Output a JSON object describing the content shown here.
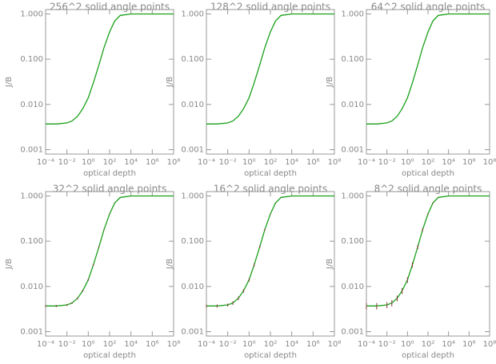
{
  "chart_data": [
    {
      "type": "line",
      "title": "256^2 solid angle points",
      "xlabel": "optical depth",
      "ylabel": "J/B",
      "color": "#1aa01a",
      "log_x": true,
      "log_y": true,
      "x": [
        0.0001,
        0.001,
        0.01,
        0.03,
        0.1,
        0.3,
        1,
        3,
        10,
        30,
        100,
        300,
        1000,
        10000,
        100000,
        1000000,
        10000000,
        100000000
      ],
      "values": [
        0.0037,
        0.0037,
        0.0039,
        0.0043,
        0.0055,
        0.008,
        0.014,
        0.03,
        0.075,
        0.18,
        0.4,
        0.7,
        0.93,
        1,
        1,
        1,
        1,
        1
      ],
      "xlim": [
        0.0001,
        100000000
      ],
      "ylim": [
        0.0008,
        1.25
      ],
      "xticks": [
        {
          "value": 0.0001,
          "label": "10⁻⁴"
        },
        {
          "value": 0.01,
          "label": "10⁻²"
        },
        {
          "value": 1,
          "label": "10⁰"
        },
        {
          "value": 100,
          "label": "10²"
        },
        {
          "value": 10000,
          "label": "10⁴"
        },
        {
          "value": 1000000,
          "label": "10⁶"
        },
        {
          "value": 100000000,
          "label": "10⁸"
        }
      ],
      "yticks": [
        {
          "value": 0.001,
          "label": "0.001"
        },
        {
          "value": 0.01,
          "label": "0.010"
        },
        {
          "value": 0.1,
          "label": "0.100"
        },
        {
          "value": 1,
          "label": "1.000"
        }
      ]
    },
    {
      "type": "line",
      "title": "128^2 solid angle points",
      "xlabel": "optical depth",
      "ylabel": "J/B",
      "color": "#1aa01a",
      "log_x": true,
      "log_y": true,
      "x": [
        0.0001,
        0.001,
        0.01,
        0.03,
        0.1,
        0.3,
        1,
        3,
        10,
        30,
        100,
        300,
        1000,
        10000,
        100000,
        1000000,
        10000000,
        100000000
      ],
      "values": [
        0.0037,
        0.0037,
        0.0039,
        0.0043,
        0.0055,
        0.008,
        0.014,
        0.03,
        0.075,
        0.18,
        0.4,
        0.7,
        0.93,
        1,
        1,
        1,
        1,
        1
      ],
      "xlim": [
        0.0001,
        100000000
      ],
      "ylim": [
        0.0008,
        1.25
      ],
      "xticks": [
        {
          "value": 0.0001,
          "label": "10⁻⁴"
        },
        {
          "value": 0.01,
          "label": "10⁻²"
        },
        {
          "value": 1,
          "label": "10⁰"
        },
        {
          "value": 100,
          "label": "10²"
        },
        {
          "value": 10000,
          "label": "10⁴"
        },
        {
          "value": 1000000,
          "label": "10⁶"
        },
        {
          "value": 100000000,
          "label": "10⁸"
        }
      ],
      "yticks": [
        {
          "value": 0.001,
          "label": "0.001"
        },
        {
          "value": 0.01,
          "label": "0.010"
        },
        {
          "value": 0.1,
          "label": "0.100"
        },
        {
          "value": 1,
          "label": "1.000"
        }
      ]
    },
    {
      "type": "line",
      "title": "64^2 solid angle points",
      "xlabel": "optical depth",
      "ylabel": "J/B",
      "color": "#1aa01a",
      "log_x": true,
      "log_y": true,
      "x": [
        0.0001,
        0.001,
        0.01,
        0.03,
        0.1,
        0.3,
        1,
        3,
        10,
        30,
        100,
        300,
        1000,
        10000,
        100000,
        1000000,
        10000000,
        100000000
      ],
      "values": [
        0.0037,
        0.0037,
        0.0039,
        0.0043,
        0.0055,
        0.008,
        0.014,
        0.03,
        0.075,
        0.18,
        0.4,
        0.7,
        0.93,
        1,
        1,
        1,
        1,
        1
      ],
      "xlim": [
        0.0001,
        100000000
      ],
      "ylim": [
        0.0008,
        1.25
      ],
      "xticks": [
        {
          "value": 0.0001,
          "label": "10⁻⁴"
        },
        {
          "value": 0.01,
          "label": "10⁻²"
        },
        {
          "value": 1,
          "label": "10⁰"
        },
        {
          "value": 100,
          "label": "10²"
        },
        {
          "value": 10000,
          "label": "10⁴"
        },
        {
          "value": 1000000,
          "label": "10⁶"
        },
        {
          "value": 100000000,
          "label": "10⁸"
        }
      ],
      "yticks": [
        {
          "value": 0.001,
          "label": "0.001"
        },
        {
          "value": 0.01,
          "label": "0.010"
        },
        {
          "value": 0.1,
          "label": "0.100"
        },
        {
          "value": 1,
          "label": "1.000"
        }
      ]
    },
    {
      "type": "line",
      "title": "32^2 solid angle points",
      "xlabel": "optical depth",
      "ylabel": "J/B",
      "color": "#1aa01a",
      "log_x": true,
      "log_y": true,
      "x": [
        0.0001,
        0.001,
        0.01,
        0.03,
        0.1,
        0.3,
        1,
        3,
        10,
        30,
        100,
        300,
        1000,
        10000,
        100000,
        1000000,
        10000000,
        100000000
      ],
      "values": [
        0.0037,
        0.0037,
        0.0039,
        0.0043,
        0.0055,
        0.008,
        0.014,
        0.03,
        0.075,
        0.18,
        0.4,
        0.7,
        0.93,
        1,
        1,
        1,
        1,
        1
      ],
      "errors": [
        0.0002,
        0.0002,
        0.0002,
        0.0002,
        0.0003,
        0.0004,
        0.0007,
        0.0013,
        0.003,
        0.005,
        0.006,
        0.006,
        0.003,
        0,
        0,
        0,
        0,
        0
      ],
      "xlim": [
        0.0001,
        100000000
      ],
      "ylim": [
        0.0008,
        1.25
      ],
      "xticks": [
        {
          "value": 0.0001,
          "label": "10⁻⁴"
        },
        {
          "value": 0.01,
          "label": "10⁻²"
        },
        {
          "value": 1,
          "label": "10⁰"
        },
        {
          "value": 100,
          "label": "10²"
        },
        {
          "value": 10000,
          "label": "10⁴"
        },
        {
          "value": 1000000,
          "label": "10⁶"
        },
        {
          "value": 100000000,
          "label": "10⁸"
        }
      ],
      "yticks": [
        {
          "value": 0.001,
          "label": "0.001"
        },
        {
          "value": 0.01,
          "label": "0.010"
        },
        {
          "value": 0.1,
          "label": "0.100"
        },
        {
          "value": 1,
          "label": "1.000"
        }
      ]
    },
    {
      "type": "line",
      "title": "16^2 solid angle points",
      "xlabel": "optical depth",
      "ylabel": "J/B",
      "color": "#1aa01a",
      "log_x": true,
      "log_y": true,
      "x": [
        0.0001,
        0.001,
        0.01,
        0.03,
        0.1,
        0.3,
        1,
        3,
        10,
        30,
        100,
        300,
        1000,
        10000,
        100000,
        1000000,
        10000000,
        100000000
      ],
      "values": [
        0.0037,
        0.0037,
        0.0039,
        0.0043,
        0.0055,
        0.008,
        0.014,
        0.03,
        0.075,
        0.18,
        0.4,
        0.7,
        0.93,
        1,
        1,
        1,
        1,
        1
      ],
      "errors": [
        0.0003,
        0.0003,
        0.0003,
        0.0004,
        0.0005,
        0.0007,
        0.0012,
        0.0025,
        0.005,
        0.01,
        0.012,
        0.012,
        0.006,
        0,
        0,
        0,
        0,
        0
      ],
      "xlim": [
        0.0001,
        100000000
      ],
      "ylim": [
        0.0008,
        1.25
      ],
      "xticks": [
        {
          "value": 0.0001,
          "label": "10⁻⁴"
        },
        {
          "value": 0.01,
          "label": "10⁻²"
        },
        {
          "value": 1,
          "label": "10⁰"
        },
        {
          "value": 100,
          "label": "10²"
        },
        {
          "value": 10000,
          "label": "10⁴"
        },
        {
          "value": 1000000,
          "label": "10⁶"
        },
        {
          "value": 100000000,
          "label": "10⁸"
        }
      ],
      "yticks": [
        {
          "value": 0.001,
          "label": "0.001"
        },
        {
          "value": 0.01,
          "label": "0.010"
        },
        {
          "value": 0.1,
          "label": "0.100"
        },
        {
          "value": 1,
          "label": "1.000"
        }
      ]
    },
    {
      "type": "line",
      "title": "8^2 solid angle points",
      "xlabel": "optical depth",
      "ylabel": "J/B",
      "color": "#1aa01a",
      "log_x": true,
      "log_y": true,
      "x": [
        0.0001,
        0.001,
        0.01,
        0.03,
        0.1,
        0.3,
        1,
        3,
        10,
        30,
        100,
        300,
        1000,
        10000,
        100000,
        1000000,
        10000000,
        100000000
      ],
      "values": [
        0.0037,
        0.0037,
        0.0039,
        0.0043,
        0.0055,
        0.008,
        0.014,
        0.03,
        0.075,
        0.18,
        0.4,
        0.7,
        0.93,
        1,
        1,
        1,
        1,
        1
      ],
      "errors": [
        0.0006,
        0.0006,
        0.0006,
        0.0007,
        0.0008,
        0.0012,
        0.002,
        0.004,
        0.008,
        0.015,
        0.02,
        0.02,
        0.01,
        0,
        0,
        0,
        0,
        0
      ],
      "xlim": [
        0.0001,
        100000000
      ],
      "ylim": [
        0.0008,
        1.25
      ],
      "xticks": [
        {
          "value": 0.0001,
          "label": "10⁻⁴"
        },
        {
          "value": 0.01,
          "label": "10⁻²"
        },
        {
          "value": 1,
          "label": "10⁰"
        },
        {
          "value": 100,
          "label": "10²"
        },
        {
          "value": 10000,
          "label": "10⁴"
        },
        {
          "value": 1000000,
          "label": "10⁶"
        },
        {
          "value": 100000000,
          "label": "10⁸"
        }
      ],
      "yticks": [
        {
          "value": 0.001,
          "label": "0.001"
        },
        {
          "value": 0.01,
          "label": "0.010"
        },
        {
          "value": 0.1,
          "label": "0.100"
        },
        {
          "value": 1,
          "label": "1.000"
        }
      ]
    }
  ]
}
